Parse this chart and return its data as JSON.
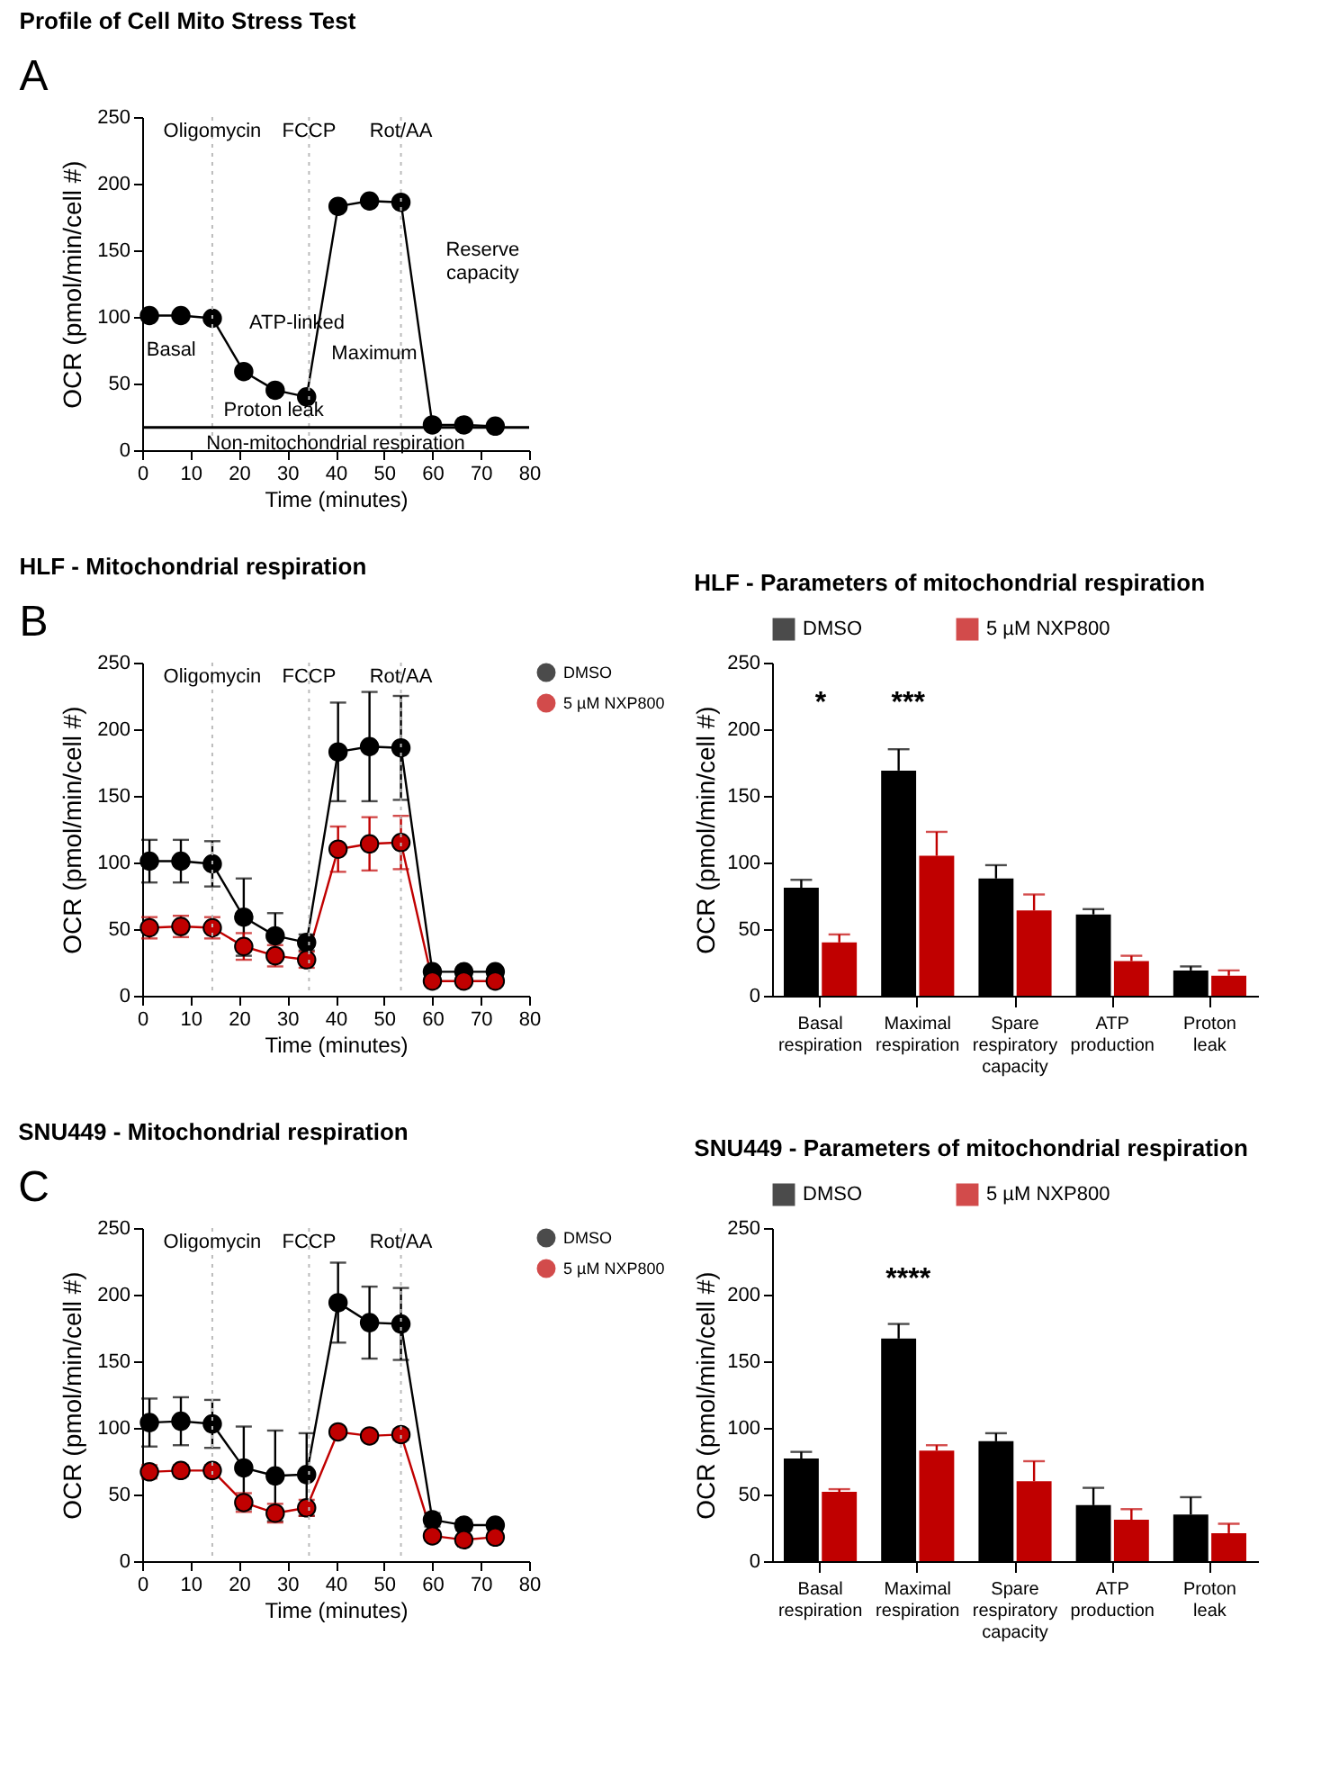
{
  "chart_data": [
    {
      "type": "line",
      "title": "Profile of Cell Mito Stress Test",
      "xlabel": "Time (minutes)",
      "ylabel": "OCR (pmol/min/cell #)",
      "x": [
        1.5,
        8,
        14.5,
        21,
        27.5,
        34,
        40.5,
        47,
        53.5,
        60,
        66.5,
        73
      ],
      "xlim": [
        0,
        80
      ],
      "xticks": [
        0,
        10,
        20,
        30,
        40,
        50,
        60,
        70,
        80
      ],
      "ylim": [
        0,
        250
      ],
      "yticks": [
        0,
        50,
        100,
        150,
        200,
        250
      ],
      "marker": "circle",
      "legend": false,
      "grid": false,
      "series": [
        {
          "color": "#000000",
          "values": [
            101,
            101,
            99,
            59,
            45,
            40,
            183,
            187,
            186,
            19,
            19,
            18
          ]
        }
      ],
      "ref_lines": [
        {
          "axis": "x",
          "value": 14.5,
          "label": "Oligomycin",
          "color": "#bbbbbb",
          "line_style": "dotted"
        },
        {
          "axis": "x",
          "value": 34.5,
          "label": "FCCP",
          "color": "#bbbbbb",
          "line_style": "dotted"
        },
        {
          "axis": "x",
          "value": 53.5,
          "label": "Rot/AA",
          "color": "#bbbbbb",
          "line_style": "dotted"
        },
        {
          "axis": "y",
          "value": 17,
          "label": "Non-mitochondrial respiration",
          "color": "#000000",
          "line_style": "solid"
        }
      ],
      "annotations": [
        "A",
        "Basal",
        "ATP-linked",
        "Maximum",
        "Reserve capacity",
        "Proton leak"
      ]
    },
    {
      "type": "line",
      "title": "HLF - Mitochondrial respiration",
      "xlabel": "Time (minutes)",
      "ylabel": "OCR (pmol/min/cell #)",
      "x": [
        1.5,
        8,
        14.5,
        21,
        27.5,
        34,
        40.5,
        47,
        53.5,
        60,
        66.5,
        73
      ],
      "xlim": [
        0,
        80
      ],
      "xticks": [
        0,
        10,
        20,
        30,
        40,
        50,
        60,
        70,
        80
      ],
      "ylim": [
        0,
        250
      ],
      "yticks": [
        0,
        50,
        100,
        150,
        200,
        250
      ],
      "marker": "circle",
      "legend": "top right",
      "grid": false,
      "series": [
        {
          "name": "DMSO",
          "color": "#000000",
          "values": [
            101,
            101,
            99,
            59,
            45,
            40,
            183,
            187,
            186,
            18,
            18,
            18
          ],
          "errors": [
            16,
            16,
            17,
            29,
            17,
            6,
            37,
            41,
            39,
            3,
            3,
            3
          ]
        },
        {
          "name": "5 µM NXP800",
          "color": "#c00000",
          "values": [
            51,
            52,
            51,
            37,
            30,
            27,
            110,
            114,
            115,
            11,
            11,
            11
          ],
          "errors": [
            8,
            8,
            8,
            10,
            8,
            6,
            17,
            20,
            20,
            2,
            2,
            2
          ]
        }
      ],
      "ref_lines": [
        {
          "axis": "x",
          "value": 14.5,
          "label": "Oligomycin",
          "color": "#bbbbbb",
          "line_style": "dotted"
        },
        {
          "axis": "x",
          "value": 34.5,
          "label": "FCCP",
          "color": "#bbbbbb",
          "line_style": "dotted"
        },
        {
          "axis": "x",
          "value": 53.5,
          "label": "Rot/AA",
          "color": "#bbbbbb",
          "line_style": "dotted"
        }
      ],
      "annotations": [
        "B"
      ]
    },
    {
      "type": "bar",
      "title": "HLF - Parameters of mitochondrial respiration",
      "ylabel": "OCR (pmol/min/cell #)",
      "categories": [
        "Basal respiration",
        "Maximal respiration",
        "Spare respiratory capacity",
        "ATP production",
        "Proton leak"
      ],
      "ylim": [
        0,
        250
      ],
      "yticks": [
        0,
        50,
        100,
        150,
        200,
        250
      ],
      "legend": "top",
      "grid": false,
      "series": [
        {
          "name": "DMSO",
          "color": "#000000",
          "values": [
            81,
            169,
            88,
            61,
            19
          ],
          "errors": [
            [
              81,
              87
            ],
            [
              169,
              185
            ],
            [
              88,
              98
            ],
            [
              61,
              65
            ],
            [
              19,
              22
            ]
          ]
        },
        {
          "name": "5 µM NXP800",
          "color": "#c00000",
          "values": [
            40,
            105,
            64,
            26,
            15
          ],
          "errors": [
            [
              40,
              46
            ],
            [
              105,
              123
            ],
            [
              64,
              76
            ],
            [
              26,
              30
            ],
            [
              15,
              19
            ]
          ]
        }
      ],
      "annotations": [
        "*",
        "***"
      ]
    },
    {
      "type": "line",
      "title": "SNU449 - Mitochondrial respiration",
      "xlabel": "Time (minutes)",
      "ylabel": "OCR (pmol/min/cell #)",
      "x": [
        1.5,
        8,
        14.5,
        21,
        27.5,
        34,
        40.5,
        47,
        53.5,
        60,
        66.5,
        73
      ],
      "xlim": [
        0,
        80
      ],
      "xticks": [
        0,
        10,
        20,
        30,
        40,
        50,
        60,
        70,
        80
      ],
      "ylim": [
        0,
        250
      ],
      "yticks": [
        0,
        50,
        100,
        150,
        200,
        250
      ],
      "marker": "circle",
      "legend": "top right",
      "grid": false,
      "series": [
        {
          "name": "DMSO",
          "color": "#000000",
          "values": [
            104,
            105,
            103,
            70,
            64,
            65,
            194,
            179,
            178,
            31,
            27,
            27
          ],
          "errors": [
            18,
            18,
            18,
            31,
            34,
            31,
            30,
            27,
            27,
            5,
            4,
            3
          ]
        },
        {
          "name": "5 µM NXP800",
          "color": "#c00000",
          "values": [
            67,
            68,
            68,
            44,
            36,
            40,
            97,
            94,
            95,
            19,
            16,
            18
          ],
          "errors": [
            5,
            4,
            4,
            7,
            7,
            6,
            3,
            3,
            4,
            3,
            3,
            2
          ]
        }
      ],
      "ref_lines": [
        {
          "axis": "x",
          "value": 14.5,
          "label": "Oligomycin",
          "color": "#bbbbbb",
          "line_style": "dotted"
        },
        {
          "axis": "x",
          "value": 34.5,
          "label": "FCCP",
          "color": "#bbbbbb",
          "line_style": "dotted"
        },
        {
          "axis": "x",
          "value": 53.5,
          "label": "Rot/AA",
          "color": "#bbbbbb",
          "line_style": "dotted"
        }
      ],
      "annotations": [
        "C"
      ]
    },
    {
      "type": "bar",
      "title": "SNU449 - Parameters of mitochondrial respiration",
      "ylabel": "OCR (pmol/min/cell #)",
      "categories": [
        "Basal respiration",
        "Maximal respiration",
        "Spare respiratory capacity",
        "ATP production",
        "Proton leak"
      ],
      "ylim": [
        0,
        250
      ],
      "yticks": [
        0,
        50,
        100,
        150,
        200,
        250
      ],
      "legend": "top",
      "grid": false,
      "series": [
        {
          "name": "DMSO",
          "color": "#000000",
          "values": [
            77,
            167,
            90,
            42,
            35
          ],
          "errors": [
            [
              77,
              82
            ],
            [
              167,
              178
            ],
            [
              90,
              96
            ],
            [
              42,
              55
            ],
            [
              35,
              48
            ]
          ]
        },
        {
          "name": "5 µM NXP800",
          "color": "#c00000",
          "values": [
            52,
            83,
            60,
            31,
            21
          ],
          "errors": [
            [
              52,
              54
            ],
            [
              83,
              87
            ],
            [
              60,
              75
            ],
            [
              31,
              39
            ],
            [
              21,
              28
            ]
          ]
        }
      ],
      "annotations": [
        "****"
      ]
    }
  ]
}
